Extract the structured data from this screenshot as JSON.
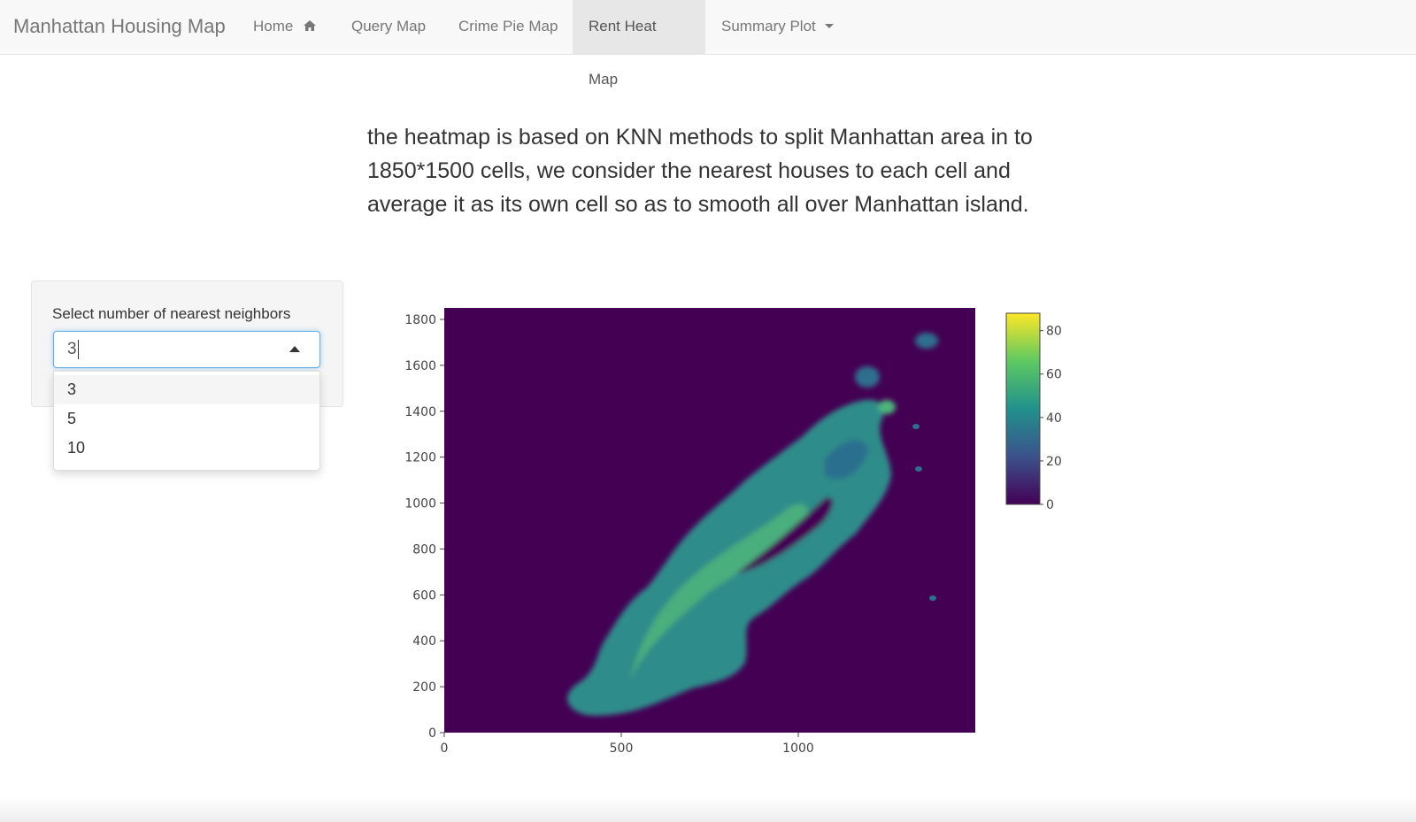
{
  "navbar": {
    "brand": "Manhattan Housing Map",
    "items": [
      {
        "label": "Home"
      },
      {
        "label": "Query Map"
      },
      {
        "label": "Crime Pie Map"
      },
      {
        "label": "Rent Heat Map",
        "active": true
      },
      {
        "label": "Summary Plot",
        "has_caret": true
      }
    ]
  },
  "description": "the heatmap is based on KNN methods to split Manhattan area in to 1850*1500 cells, we consider the nearest houses to each cell and average it as its own cell so as to smooth all over Manhattan island.",
  "control": {
    "label": "Select number of nearest neighbors",
    "selected": "3",
    "options": [
      "3",
      "5",
      "10"
    ],
    "expanded": true
  },
  "chart_data": {
    "type": "heatmap",
    "x_ticks": [
      0,
      500,
      1000
    ],
    "y_ticks": [
      0,
      200,
      400,
      600,
      800,
      1000,
      1200,
      1400,
      1600,
      1800
    ],
    "xlim": [
      0,
      1500
    ],
    "ylim": [
      0,
      1850
    ],
    "colorbar": {
      "ticks": [
        0,
        20,
        40,
        60,
        80
      ],
      "range": [
        0,
        88
      ],
      "colorscale": "viridis"
    },
    "background_color": "#440154"
  },
  "colors": {
    "navbar_bg": "#f8f8f8",
    "active_tab_bg": "#e7e7e7",
    "focus_border": "#66afe9"
  }
}
